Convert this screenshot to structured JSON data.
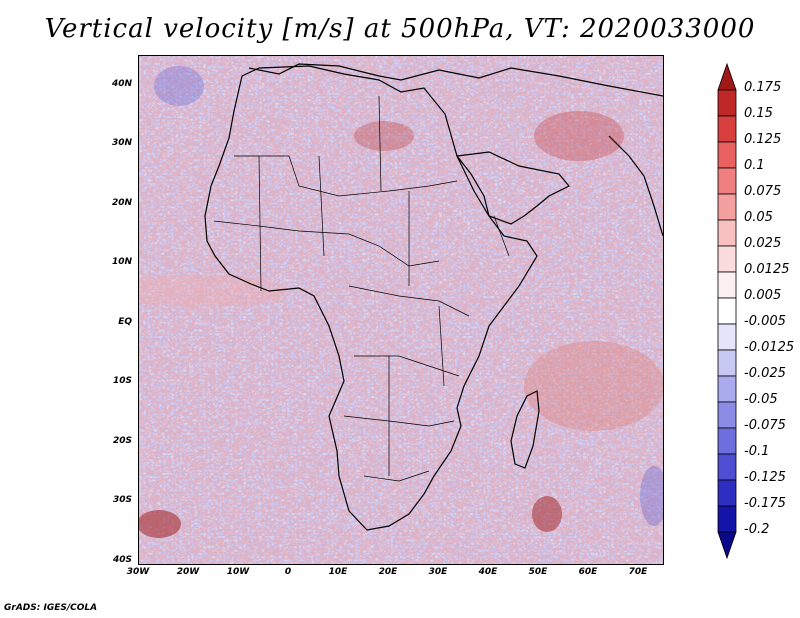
{
  "title": "Vertical velocity [m/s] at 500hPa, VT: 2020033000",
  "footer": "GrADS: IGES/COLA",
  "map": {
    "region": "Africa",
    "lon_range": [
      -30,
      75
    ],
    "lat_range": [
      -40,
      45
    ],
    "y_ticks": [
      "40N",
      "30N",
      "20N",
      "10N",
      "EQ",
      "10S",
      "20S",
      "30S",
      "40S"
    ],
    "x_ticks": [
      "30W",
      "20W",
      "10W",
      "0",
      "10E",
      "20E",
      "30E",
      "40E",
      "50E",
      "60E",
      "70E"
    ]
  },
  "colorbar": {
    "labels": [
      "0.175",
      "0.15",
      "0.125",
      "0.1",
      "0.075",
      "0.05",
      "0.025",
      "0.0125",
      "0.005",
      "-0.005",
      "-0.0125",
      "-0.025",
      "-0.05",
      "-0.075",
      "-0.1",
      "-0.125",
      "-0.175",
      "-0.2"
    ],
    "colors": [
      "#a01818",
      "#c02828",
      "#d84040",
      "#e86060",
      "#f08080",
      "#f5a0a0",
      "#f8c0c0",
      "#fadcdc",
      "#fdf0f0",
      "#ffffff",
      "#e4e4fa",
      "#c8c8f5",
      "#aaaaee",
      "#8c8ce6",
      "#6e6ede",
      "#4e4ed2",
      "#2e2ec0",
      "#1414a8",
      "#08088a"
    ]
  }
}
